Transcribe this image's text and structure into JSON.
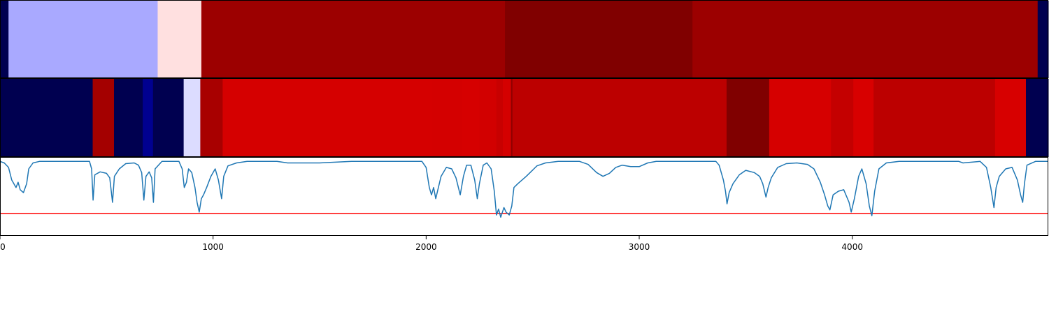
{
  "chart_data": {
    "type": "heatmap",
    "xlim": [
      0,
      4920
    ],
    "xticks": [
      {
        "value": 0,
        "label": "0"
      },
      {
        "value": 1000,
        "label": "1000"
      },
      {
        "value": 2000,
        "label": "2000"
      },
      {
        "value": 3000,
        "label": "3000"
      },
      {
        "value": 4000,
        "label": "4000"
      }
    ],
    "colormap": "seismic",
    "panels": [
      {
        "kind": "segment-band",
        "segments": [
          {
            "start": 0,
            "end": 40,
            "color": "#000050"
          },
          {
            "start": 40,
            "end": 740,
            "color": "#a9a9ff"
          },
          {
            "start": 740,
            "end": 945,
            "color": "#ffe0e0"
          },
          {
            "start": 945,
            "end": 2370,
            "color": "#9c0000"
          },
          {
            "start": 2370,
            "end": 3250,
            "color": "#800000"
          },
          {
            "start": 3250,
            "end": 4870,
            "color": "#9c0000"
          },
          {
            "start": 4870,
            "end": 4920,
            "color": "#000050"
          }
        ]
      },
      {
        "kind": "segment-band",
        "segments": [
          {
            "start": 0,
            "end": 435,
            "color": "#000050"
          },
          {
            "start": 435,
            "end": 535,
            "color": "#a40000"
          },
          {
            "start": 535,
            "end": 670,
            "color": "#000050"
          },
          {
            "start": 670,
            "end": 718,
            "color": "#000090"
          },
          {
            "start": 718,
            "end": 862,
            "color": "#000050"
          },
          {
            "start": 862,
            "end": 940,
            "color": "#dcdcff"
          },
          {
            "start": 940,
            "end": 1045,
            "color": "#a80000"
          },
          {
            "start": 1045,
            "end": 2030,
            "color": "#d50000"
          },
          {
            "start": 2030,
            "end": 2170,
            "color": "#d40000"
          },
          {
            "start": 2170,
            "end": 2250,
            "color": "#d60000"
          },
          {
            "start": 2250,
            "end": 2330,
            "color": "#d20000"
          },
          {
            "start": 2330,
            "end": 2360,
            "color": "#c80000"
          },
          {
            "start": 2360,
            "end": 2398,
            "color": "#d40000"
          },
          {
            "start": 2398,
            "end": 2405,
            "color": "#900000"
          },
          {
            "start": 2405,
            "end": 3410,
            "color": "#bc0000"
          },
          {
            "start": 3410,
            "end": 3610,
            "color": "#800000"
          },
          {
            "start": 3610,
            "end": 3900,
            "color": "#d60000"
          },
          {
            "start": 3900,
            "end": 4005,
            "color": "#c40000"
          },
          {
            "start": 4005,
            "end": 4100,
            "color": "#d80000"
          },
          {
            "start": 4100,
            "end": 4670,
            "color": "#bc0000"
          },
          {
            "start": 4670,
            "end": 4815,
            "color": "#d70000"
          },
          {
            "start": 4815,
            "end": 4920,
            "color": "#000050"
          }
        ]
      }
    ],
    "line_panel": {
      "ylim": [
        -1,
        0.05
      ],
      "threshold": {
        "value": -0.7,
        "color": "#ff0000"
      },
      "series": [
        {
          "color": "#1f77b4",
          "points": [
            [
              0,
              0
            ],
            [
              20,
              -0.02
            ],
            [
              40,
              -0.08
            ],
            [
              55,
              -0.25
            ],
            [
              65,
              -0.3
            ],
            [
              75,
              -0.35
            ],
            [
              85,
              -0.28
            ],
            [
              95,
              -0.38
            ],
            [
              110,
              -0.42
            ],
            [
              125,
              -0.3
            ],
            [
              135,
              -0.1
            ],
            [
              155,
              -0.02
            ],
            [
              185,
              0
            ],
            [
              420,
              0
            ],
            [
              430,
              -0.1
            ],
            [
              437,
              -0.52
            ],
            [
              445,
              -0.18
            ],
            [
              470,
              -0.14
            ],
            [
              500,
              -0.16
            ],
            [
              515,
              -0.22
            ],
            [
              528,
              -0.55
            ],
            [
              537,
              -0.2
            ],
            [
              560,
              -0.1
            ],
            [
              590,
              -0.03
            ],
            [
              630,
              -0.02
            ],
            [
              650,
              -0.05
            ],
            [
              665,
              -0.15
            ],
            [
              675,
              -0.52
            ],
            [
              685,
              -0.2
            ],
            [
              700,
              -0.14
            ],
            [
              712,
              -0.22
            ],
            [
              720,
              -0.55
            ],
            [
              728,
              -0.1
            ],
            [
              760,
              0
            ],
            [
              840,
              0
            ],
            [
              855,
              -0.1
            ],
            [
              865,
              -0.35
            ],
            [
              875,
              -0.28
            ],
            [
              885,
              -0.1
            ],
            [
              900,
              -0.15
            ],
            [
              915,
              -0.35
            ],
            [
              925,
              -0.55
            ],
            [
              935,
              -0.68
            ],
            [
              945,
              -0.5
            ],
            [
              955,
              -0.45
            ],
            [
              970,
              -0.35
            ],
            [
              990,
              -0.2
            ],
            [
              1010,
              -0.1
            ],
            [
              1025,
              -0.25
            ],
            [
              1040,
              -0.5
            ],
            [
              1050,
              -0.2
            ],
            [
              1070,
              -0.06
            ],
            [
              1110,
              -0.02
            ],
            [
              1160,
              0
            ],
            [
              1300,
              0
            ],
            [
              1350,
              -0.02
            ],
            [
              1500,
              -0.02
            ],
            [
              1650,
              0
            ],
            [
              1980,
              0
            ],
            [
              2000,
              -0.08
            ],
            [
              2015,
              -0.35
            ],
            [
              2025,
              -0.45
            ],
            [
              2035,
              -0.35
            ],
            [
              2045,
              -0.5
            ],
            [
              2055,
              -0.38
            ],
            [
              2070,
              -0.2
            ],
            [
              2095,
              -0.08
            ],
            [
              2120,
              -0.1
            ],
            [
              2140,
              -0.22
            ],
            [
              2160,
              -0.45
            ],
            [
              2175,
              -0.2
            ],
            [
              2190,
              -0.05
            ],
            [
              2210,
              -0.05
            ],
            [
              2228,
              -0.25
            ],
            [
              2240,
              -0.5
            ],
            [
              2250,
              -0.3
            ],
            [
              2268,
              -0.05
            ],
            [
              2285,
              -0.02
            ],
            [
              2305,
              -0.1
            ],
            [
              2320,
              -0.4
            ],
            [
              2330,
              -0.72
            ],
            [
              2340,
              -0.64
            ],
            [
              2350,
              -0.75
            ],
            [
              2365,
              -0.62
            ],
            [
              2375,
              -0.68
            ],
            [
              2390,
              -0.72
            ],
            [
              2402,
              -0.6
            ],
            [
              2412,
              -0.35
            ],
            [
              2430,
              -0.3
            ],
            [
              2470,
              -0.2
            ],
            [
              2520,
              -0.06
            ],
            [
              2560,
              -0.02
            ],
            [
              2620,
              0
            ],
            [
              2720,
              0
            ],
            [
              2760,
              -0.04
            ],
            [
              2800,
              -0.15
            ],
            [
              2830,
              -0.2
            ],
            [
              2860,
              -0.16
            ],
            [
              2890,
              -0.08
            ],
            [
              2920,
              -0.05
            ],
            [
              2960,
              -0.07
            ],
            [
              3000,
              -0.07
            ],
            [
              3040,
              -0.02
            ],
            [
              3080,
              0
            ],
            [
              3360,
              0
            ],
            [
              3375,
              -0.05
            ],
            [
              3395,
              -0.25
            ],
            [
              3405,
              -0.4
            ],
            [
              3412,
              -0.57
            ],
            [
              3422,
              -0.42
            ],
            [
              3440,
              -0.3
            ],
            [
              3470,
              -0.18
            ],
            [
              3500,
              -0.12
            ],
            [
              3540,
              -0.15
            ],
            [
              3565,
              -0.2
            ],
            [
              3580,
              -0.3
            ],
            [
              3595,
              -0.48
            ],
            [
              3605,
              -0.35
            ],
            [
              3620,
              -0.22
            ],
            [
              3650,
              -0.08
            ],
            [
              3690,
              -0.03
            ],
            [
              3740,
              -0.02
            ],
            [
              3790,
              -0.04
            ],
            [
              3820,
              -0.1
            ],
            [
              3850,
              -0.28
            ],
            [
              3870,
              -0.45
            ],
            [
              3885,
              -0.6
            ],
            [
              3895,
              -0.65
            ],
            [
              3910,
              -0.45
            ],
            [
              3935,
              -0.4
            ],
            [
              3960,
              -0.38
            ],
            [
              3985,
              -0.55
            ],
            [
              3995,
              -0.68
            ],
            [
              4010,
              -0.5
            ],
            [
              4030,
              -0.2
            ],
            [
              4045,
              -0.1
            ],
            [
              4065,
              -0.3
            ],
            [
              4080,
              -0.6
            ],
            [
              4092,
              -0.73
            ],
            [
              4105,
              -0.4
            ],
            [
              4125,
              -0.1
            ],
            [
              4160,
              -0.02
            ],
            [
              4220,
              0
            ],
            [
              4500,
              0
            ],
            [
              4520,
              -0.02
            ],
            [
              4600,
              0
            ],
            [
              4630,
              -0.08
            ],
            [
              4650,
              -0.35
            ],
            [
              4665,
              -0.62
            ],
            [
              4675,
              -0.35
            ],
            [
              4690,
              -0.2
            ],
            [
              4720,
              -0.1
            ],
            [
              4750,
              -0.08
            ],
            [
              4775,
              -0.25
            ],
            [
              4790,
              -0.45
            ],
            [
              4800,
              -0.55
            ],
            [
              4808,
              -0.3
            ],
            [
              4820,
              -0.05
            ],
            [
              4860,
              0
            ],
            [
              4920,
              0
            ]
          ]
        }
      ]
    }
  }
}
